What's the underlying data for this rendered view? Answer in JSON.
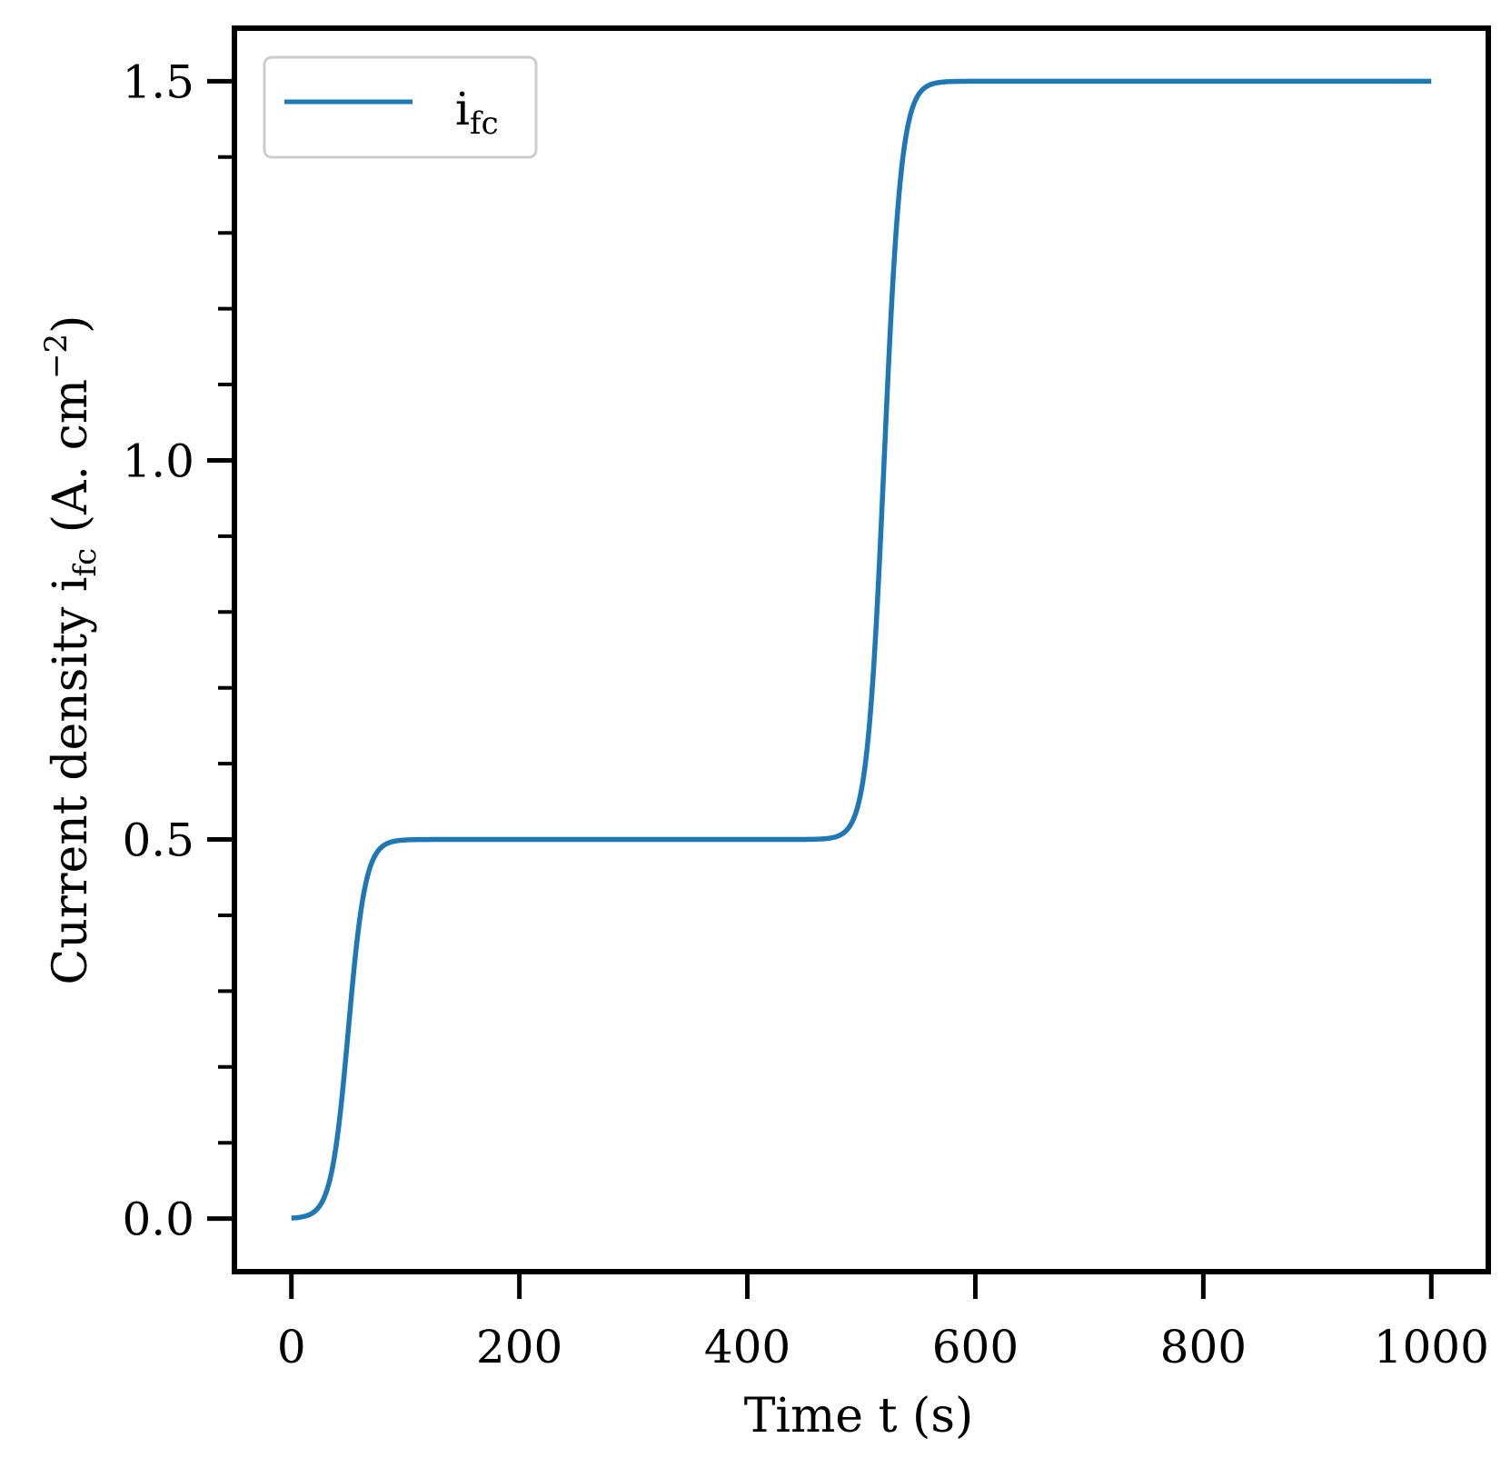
{
  "chart_data": {
    "type": "line",
    "xlabel": "Time t (s)",
    "ylabel": {
      "prefix": "Current density i",
      "sub": "fc",
      "middle": " (A. cm",
      "sup": "−2",
      "suffix": ")"
    },
    "xlim": [
      -50,
      1050
    ],
    "ylim": [
      -0.07,
      1.57
    ],
    "x_ticks": [
      0,
      200,
      400,
      600,
      800,
      1000
    ],
    "x_tick_labels": [
      "0",
      "200",
      "400",
      "600",
      "800",
      "1000"
    ],
    "y_ticks": [
      0.0,
      0.5,
      1.0,
      1.5
    ],
    "y_tick_labels": [
      "0.0",
      "0.5",
      "1.0",
      "1.5"
    ],
    "y_minor_ticks": [
      0.1,
      0.2,
      0.3,
      0.4,
      0.6,
      0.7,
      0.8,
      0.9,
      1.1,
      1.2,
      1.3,
      1.4
    ],
    "grid": false,
    "legend": {
      "position": "top-left"
    },
    "series": [
      {
        "name": "i",
        "name_sub": "fc",
        "color": "#1f77b4",
        "steps": [
          {
            "t0": 0,
            "center": 50,
            "width": 7.5,
            "from": 0.0,
            "to": 0.5
          },
          {
            "t0": 0,
            "center": 520,
            "width": 7.5,
            "from": 0.5,
            "to": 1.5
          }
        ],
        "x": [
          0,
          20,
          30,
          40,
          45,
          50,
          55,
          60,
          65,
          70,
          80,
          100,
          200,
          300,
          400,
          480,
          490,
          500,
          510,
          515,
          520,
          525,
          530,
          540,
          550,
          560,
          600,
          800,
          1000
        ],
        "y": [
          0.0,
          0.004,
          0.025,
          0.102,
          0.166,
          0.25,
          0.334,
          0.398,
          0.44,
          0.466,
          0.49,
          0.5,
          0.5,
          0.5,
          0.5,
          0.5,
          0.508,
          0.532,
          0.667,
          0.834,
          1.0,
          1.166,
          1.333,
          1.466,
          1.49,
          1.498,
          1.5,
          1.5,
          1.5
        ]
      }
    ]
  }
}
